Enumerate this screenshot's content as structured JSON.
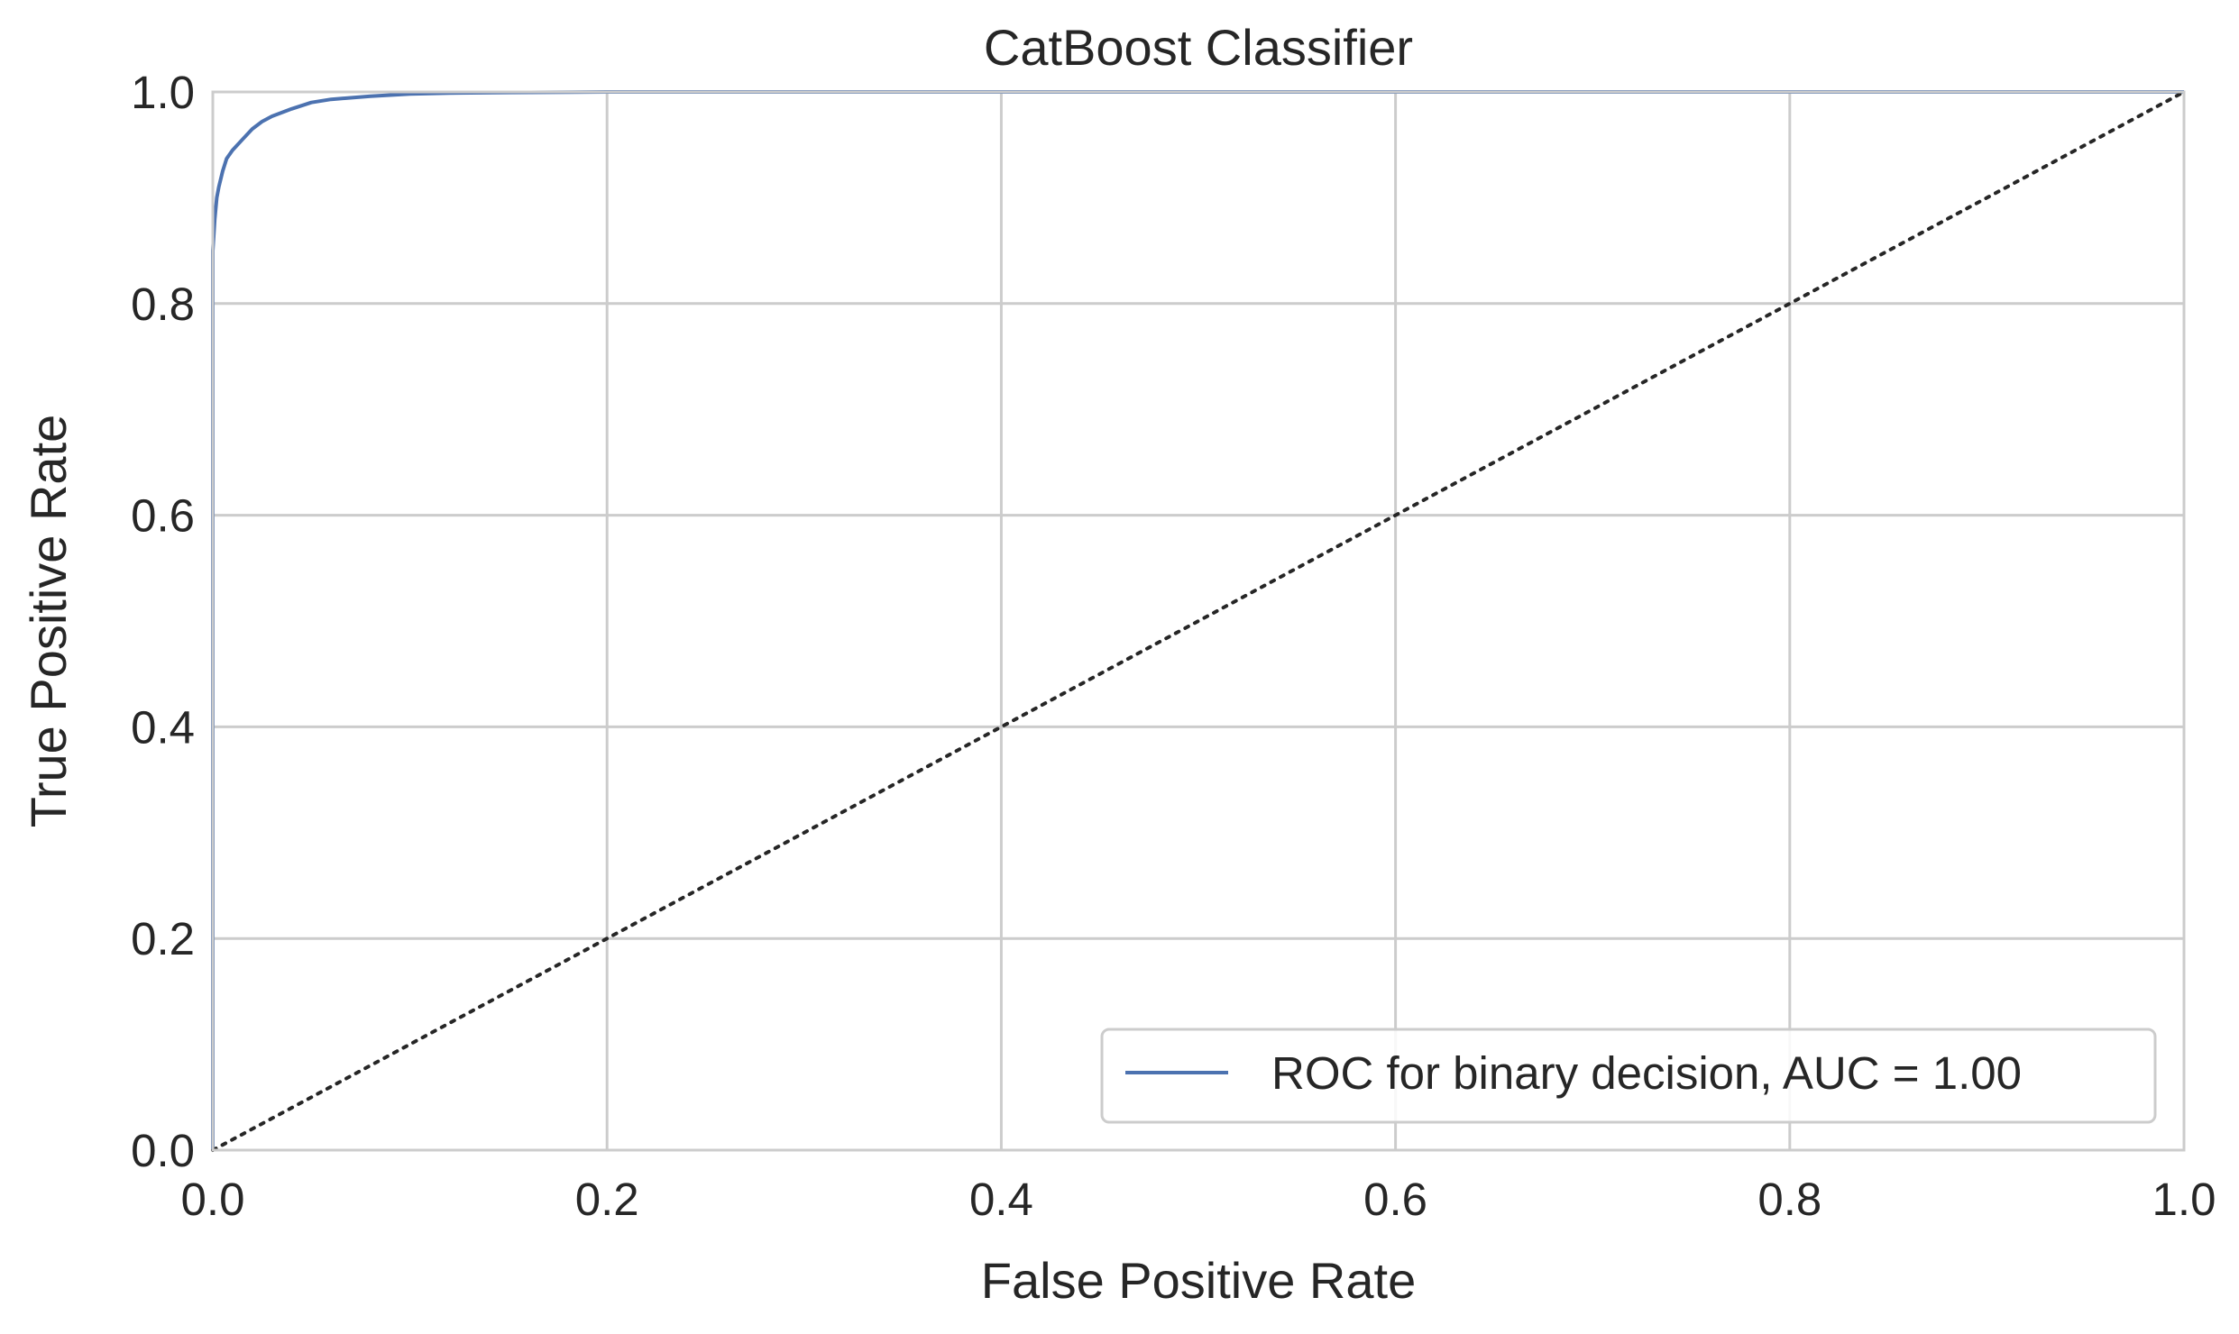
{
  "chart_data": {
    "type": "line",
    "title": "CatBoost Classifier",
    "xlabel": "False Positive Rate",
    "ylabel": "True Positive Rate",
    "xlim": [
      0.0,
      1.0
    ],
    "ylim": [
      0.0,
      1.0
    ],
    "x_ticks": [
      "0.0",
      "0.2",
      "0.4",
      "0.6",
      "0.8",
      "1.0"
    ],
    "y_ticks": [
      "0.0",
      "0.2",
      "0.4",
      "0.6",
      "0.8",
      "1.0"
    ],
    "grid": true,
    "legend_position": "lower-right",
    "series": [
      {
        "name": "ROC for binary decision, AUC = 1.00",
        "color": "#4c72b0",
        "style": "solid",
        "x": [
          0.0,
          0.0,
          0.001,
          0.002,
          0.003,
          0.005,
          0.007,
          0.01,
          0.015,
          0.02,
          0.025,
          0.03,
          0.04,
          0.05,
          0.06,
          0.08,
          0.1,
          0.12,
          0.15,
          0.2,
          1.0
        ],
        "y": [
          0.0,
          0.85,
          0.88,
          0.9,
          0.91,
          0.925,
          0.937,
          0.945,
          0.955,
          0.965,
          0.972,
          0.977,
          0.984,
          0.99,
          0.993,
          0.996,
          0.998,
          0.999,
          0.9995,
          1.0,
          1.0
        ]
      },
      {
        "name": "",
        "color": "#262626",
        "style": "dotted",
        "x": [
          0.0,
          1.0
        ],
        "y": [
          0.0,
          1.0
        ]
      }
    ]
  }
}
